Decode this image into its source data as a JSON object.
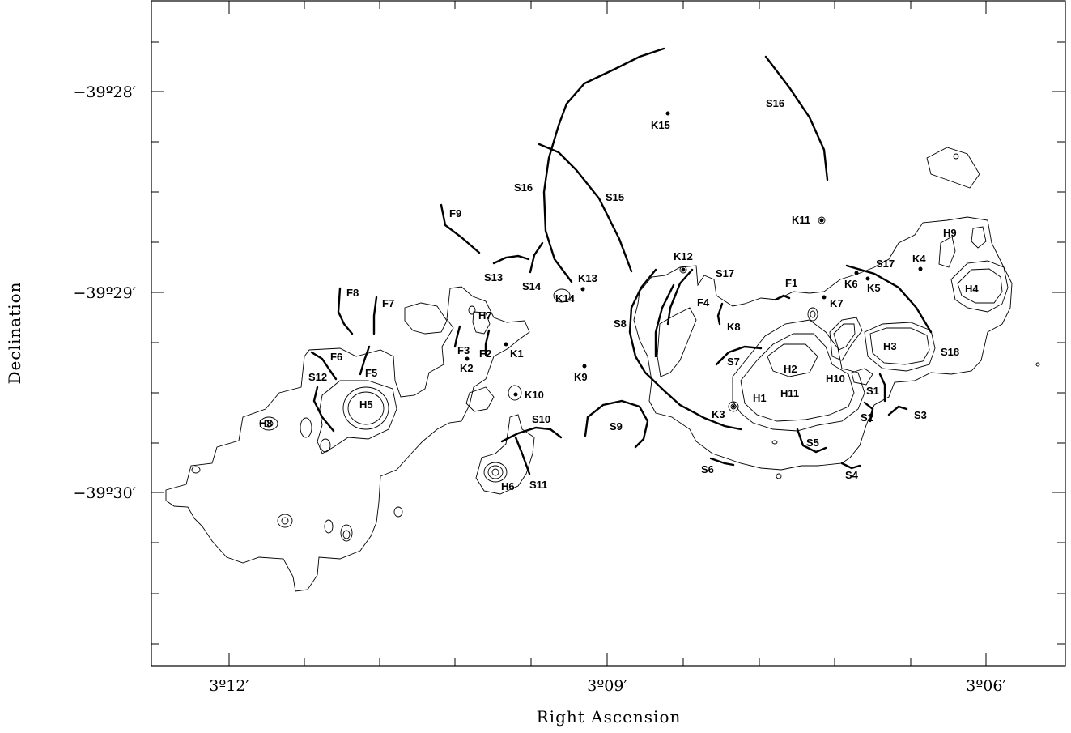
{
  "axes": {
    "x_title": "Right Ascension",
    "y_title": "Declination",
    "x_ticks": [
      "3º12′",
      "3º09′",
      "3º06′"
    ],
    "y_ticks": [
      "−39º28′",
      "−39º29′",
      "−39º30′"
    ]
  },
  "labels": {
    "S1": "S1",
    "S2": "S2",
    "S3": "S3",
    "S4": "S4",
    "S5": "S5",
    "S6": "S6",
    "S7": "S7",
    "S8": "S8",
    "S9": "S9",
    "S10": "S10",
    "S11": "S11",
    "S12": "S12",
    "S13": "S13",
    "S14": "S14",
    "S15": "S15",
    "S16a": "S16",
    "S16b": "S16",
    "S17a": "S17",
    "S17b": "S17",
    "S18": "S18",
    "F1": "F1",
    "F2": "F2",
    "F3": "F3",
    "F4": "F4",
    "F5": "F5",
    "F6": "F6",
    "F7": "F7",
    "F8": "F8",
    "F9": "F9",
    "H1": "H1",
    "H2": "H2",
    "H3": "H3",
    "H4": "H4",
    "H5": "H5",
    "H6": "H6",
    "H7": "H7",
    "H8": "H8",
    "H9": "H9",
    "H10": "H10",
    "H11": "H11",
    "K1": "K1",
    "K2": "K2",
    "K3": "K3",
    "K4": "K4",
    "K5": "K5",
    "K6": "K6",
    "K7": "K7",
    "K8": "K8",
    "K9": "K9",
    "K10": "K10",
    "K11": "K11",
    "K12": "K12",
    "K13": "K13",
    "K14": "K14",
    "K15": "K15"
  }
}
